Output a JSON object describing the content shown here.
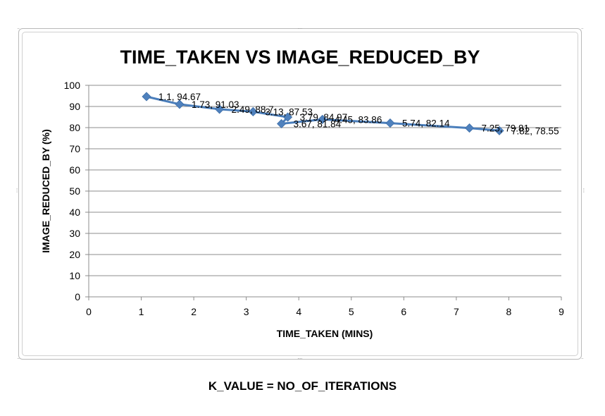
{
  "caption": "K_VALUE = NO_OF_ITERATIONS",
  "chart_data": {
    "type": "scatter",
    "title": "TIME_TAKEN VS IMAGE_REDUCED_BY",
    "xlabel": "TIME_TAKEN (MINS)",
    "ylabel": "IMAGE_REDUCED_BY (%)",
    "xlim": [
      0,
      9
    ],
    "ylim": [
      0,
      100
    ],
    "x_ticks": [
      0,
      1,
      2,
      3,
      4,
      5,
      6,
      7,
      8,
      9
    ],
    "y_ticks": [
      0,
      10,
      20,
      30,
      40,
      50,
      60,
      70,
      80,
      90,
      100
    ],
    "grid": "horizontal",
    "line_color": "#4a7ebb",
    "marker_color": "#4f81bd",
    "points": [
      {
        "x": 1.1,
        "y": 94.67,
        "label": "1.1, 94.67"
      },
      {
        "x": 1.73,
        "y": 91.03,
        "label": "1.73, 91.03"
      },
      {
        "x": 2.49,
        "y": 88.7,
        "label": "2.49, 88.7"
      },
      {
        "x": 3.13,
        "y": 87.53,
        "label": "3.13, 87.53"
      },
      {
        "x": 3.79,
        "y": 84.97,
        "label": "3.79, 84.97"
      },
      {
        "x": 3.67,
        "y": 81.84,
        "label": "3.67, 81.84"
      },
      {
        "x": 4.45,
        "y": 83.86,
        "label": "4.45, 83.86"
      },
      {
        "x": 5.74,
        "y": 82.14,
        "label": "5.74, 82.14"
      },
      {
        "x": 7.25,
        "y": 79.81,
        "label": "7.25, 79.81"
      },
      {
        "x": 7.82,
        "y": 78.55,
        "label": "7.82, 78.55"
      }
    ]
  }
}
